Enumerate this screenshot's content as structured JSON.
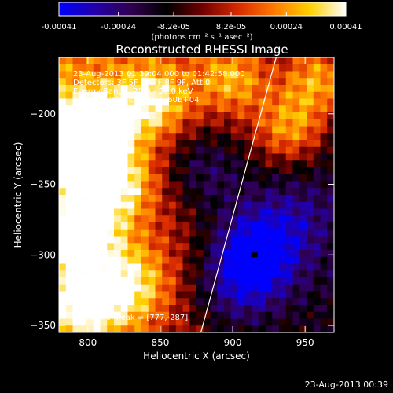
{
  "chart_data": [
    {
      "type": "colorbar",
      "ticks": [
        "-0.00041",
        "-0.00024",
        "-8.2e-05",
        "8.2e-05",
        "0.00024",
        "0.00041"
      ],
      "tick_values": [
        -0.00041,
        -0.00024,
        -8.2e-05,
        8.2e-05,
        0.00024,
        0.00041
      ],
      "range": [
        -0.00041,
        0.00041
      ],
      "label": "(photons cm⁻² s⁻¹ asec⁻²)",
      "colormap_stops": [
        "#0000ff",
        "#2200aa",
        "#300050",
        "#000000",
        "#700000",
        "#d82a00",
        "#ff7a00",
        "#ffd000",
        "#ffffff"
      ]
    },
    {
      "type": "heatmap",
      "title": "Reconstructed RHESSI Image",
      "xlabel": "Heliocentric X (arcsec)",
      "ylabel": "Heliocentric Y (arcsec)",
      "xlim": [
        780,
        970
      ],
      "ylim": [
        -355,
        -160
      ],
      "x_ticks": [
        800,
        850,
        900,
        950
      ],
      "y_ticks": [
        -350,
        -300,
        -250,
        -200
      ],
      "annotations": [
        "23-Aug-2013 01:39:04.000 to 01:42:58.000",
        "Detectors: 3F 5F 6F 7F 8F 9F, Att 0",
        "Energy Range: 25.0 - 50.0 keV",
        "Clean     Total counts: 1.60E+04"
      ],
      "peak_label": "Position of Peak = [777,-287]",
      "peak_position": [
        777,
        -287
      ],
      "limb_line": [
        [
          878,
          -355
        ],
        [
          930,
          -160
        ]
      ],
      "intensity_field": {
        "description": "bright (yellow) sources on the left half, dark/blue negative region on the right",
        "hot_spots": [
          {
            "x": 805,
            "y": -210,
            "v": 0.00041
          },
          {
            "x": 785,
            "y": -225,
            "v": 0.00036
          },
          {
            "x": 795,
            "y": -285,
            "v": 0.00038
          },
          {
            "x": 820,
            "y": -250,
            "v": 0.0003
          },
          {
            "x": 845,
            "y": -190,
            "v": 0.00032
          },
          {
            "x": 830,
            "y": -320,
            "v": 0.00026
          },
          {
            "x": 800,
            "y": -335,
            "v": 0.0003
          },
          {
            "x": 960,
            "y": -175,
            "v": 0.00035
          },
          {
            "x": 940,
            "y": -210,
            "v": 0.0003
          },
          {
            "x": 900,
            "y": -175,
            "v": 0.00028
          }
        ],
        "cold_spots": [
          {
            "x": 915,
            "y": -300,
            "v": -0.00041
          },
          {
            "x": 880,
            "y": -240,
            "v": -0.00022
          },
          {
            "x": 900,
            "y": -330,
            "v": -0.00018
          },
          {
            "x": 940,
            "y": -270,
            "v": -0.00015
          }
        ]
      }
    }
  ],
  "footer": "23-Aug-2013 00:39"
}
